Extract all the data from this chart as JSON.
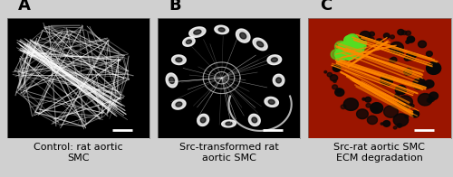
{
  "figure_width": 5.0,
  "figure_height": 1.96,
  "dpi": 100,
  "background_color": "#d0d0d0",
  "panels": [
    "A",
    "B",
    "C"
  ],
  "panel_label_fontsize": 13,
  "panel_label_color": "#000000",
  "panel_label_weight": "bold",
  "captions": [
    "Control: rat aortic\nSMC",
    "Src-transformed rat\naortic SMC",
    "Src-rat aortic SMC\nECM degradation"
  ],
  "caption_fontsize": 8.0,
  "caption_color": "#000000",
  "image_bg_A": "#000000",
  "image_bg_B": "#000000",
  "image_bg_C": "#9B1500",
  "scale_bar_color": "#ffffff",
  "fiber_color_A": "#cccccc",
  "fiber_color_C": "#FF8C00",
  "green_color_C": "#44cc22",
  "dark_spot_color_C": "#0a0a0a"
}
